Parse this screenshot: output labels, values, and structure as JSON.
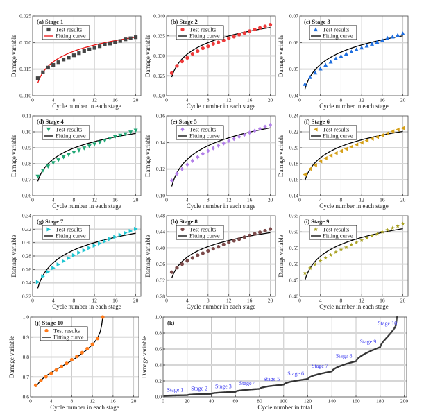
{
  "figure": {
    "ylabel": "Damage variable",
    "xlabel_stage": "Cycle number in each stage",
    "xlabel_total": "Cycle number in total",
    "legend_test": "Test results",
    "legend_fit": "Fitting curve"
  },
  "chart_data": [
    {
      "type": "scatter",
      "title": "(a) Stage 1",
      "xlim": [
        0,
        21
      ],
      "ylim": [
        0.01,
        0.025
      ],
      "xticks": [
        0,
        4,
        8,
        12,
        16,
        20
      ],
      "yticks": [
        "0.010",
        "0.015",
        "0.020",
        "0.025"
      ],
      "marker": "square",
      "color": "#454545",
      "fit_color": "#e81010",
      "x": [
        1,
        2,
        3,
        4,
        5,
        6,
        7,
        8,
        9,
        10,
        11,
        12,
        13,
        14,
        15,
        16,
        17,
        18,
        19,
        20
      ],
      "y": [
        0.0133,
        0.0144,
        0.0153,
        0.0158,
        0.0163,
        0.0168,
        0.0172,
        0.0176,
        0.018,
        0.0184,
        0.0187,
        0.019,
        0.0193,
        0.0196,
        0.0198,
        0.02,
        0.0203,
        0.0206,
        0.0208,
        0.021
      ],
      "fit": {
        "model": "a+b*ln(x)",
        "a": 0.0124,
        "b": 0.00287,
        "x_range": [
          1,
          20
        ]
      }
    },
    {
      "type": "scatter",
      "title": "(b) Stage 2",
      "xlim": [
        0,
        21
      ],
      "ylim": [
        0.02,
        0.04
      ],
      "xticks": [
        0,
        4,
        8,
        12,
        16,
        20
      ],
      "yticks": [
        "0.020",
        "0.025",
        "0.030",
        "0.035",
        "0.040"
      ],
      "marker": "circle",
      "color": "#ee3a3a",
      "fit_color": "#000000",
      "x": [
        1,
        2,
        3,
        4,
        5,
        6,
        7,
        8,
        9,
        10,
        11,
        12,
        13,
        14,
        15,
        16,
        17,
        18,
        19,
        20
      ],
      "y": [
        0.0257,
        0.0275,
        0.0286,
        0.0295,
        0.0305,
        0.0312,
        0.0319,
        0.0324,
        0.033,
        0.0334,
        0.0339,
        0.0344,
        0.0348,
        0.0353,
        0.0357,
        0.0362,
        0.0366,
        0.037,
        0.0374,
        0.0378
      ],
      "fit": {
        "model": "a+b*ln(x)",
        "a": 0.0247,
        "b": 0.00414,
        "x_range": [
          1,
          20
        ]
      }
    },
    {
      "type": "scatter",
      "title": "(c) Stage 3",
      "xlim": [
        0,
        21
      ],
      "ylim": [
        0.04,
        0.07
      ],
      "xticks": [
        0,
        4,
        8,
        12,
        16,
        20
      ],
      "yticks": [
        "0.04",
        "0.05",
        "0.06",
        "0.07"
      ],
      "marker": "triangle-up",
      "color": "#1f6fe0",
      "fit_color": "#000000",
      "x": [
        1,
        2,
        3,
        4,
        5,
        6,
        7,
        8,
        9,
        10,
        11,
        12,
        13,
        14,
        15,
        16,
        17,
        18,
        19,
        20
      ],
      "y": [
        0.0444,
        0.047,
        0.0487,
        0.0502,
        0.0516,
        0.0528,
        0.054,
        0.0549,
        0.0558,
        0.0566,
        0.0574,
        0.0581,
        0.0588,
        0.0595,
        0.0602,
        0.0609,
        0.0617,
        0.0622,
        0.0628,
        0.0634
      ],
      "fit": {
        "model": "a+b*ln(x)",
        "a": 0.0425,
        "b": 0.00668,
        "x_range": [
          1,
          20
        ]
      }
    },
    {
      "type": "scatter",
      "title": "(d) Stage 4",
      "xlim": [
        0,
        21
      ],
      "ylim": [
        0.06,
        0.11
      ],
      "xticks": [
        0,
        4,
        8,
        12,
        16,
        20
      ],
      "yticks": [
        "0.06",
        "0.07",
        "0.08",
        "0.09",
        "0.10",
        "0.11"
      ],
      "marker": "triangle-down",
      "color": "#22a876",
      "fit_color": "#000000",
      "x": [
        1,
        2,
        3,
        4,
        5,
        6,
        7,
        8,
        9,
        10,
        11,
        12,
        13,
        14,
        15,
        16,
        17,
        18,
        19,
        20
      ],
      "y": [
        0.072,
        0.0757,
        0.0783,
        0.0805,
        0.0823,
        0.0842,
        0.0856,
        0.087,
        0.0883,
        0.0897,
        0.091,
        0.0922,
        0.0933,
        0.0945,
        0.0957,
        0.0968,
        0.0977,
        0.0986,
        0.0997,
        0.1008
      ],
      "fit": {
        "model": "a+b*ln(x)",
        "a": 0.069,
        "b": 0.01001,
        "x_range": [
          1,
          20
        ]
      }
    },
    {
      "type": "scatter",
      "title": "(e) Stage 5",
      "xlim": [
        0,
        21
      ],
      "ylim": [
        0.1,
        0.16
      ],
      "xticks": [
        0,
        4,
        8,
        12,
        16,
        20
      ],
      "yticks": [
        "0.10",
        "0.12",
        "0.14",
        "0.16"
      ],
      "marker": "diamond",
      "color": "#b27fe8",
      "fit_color": "#000000",
      "x": [
        1,
        2,
        3,
        4,
        5,
        6,
        7,
        8,
        9,
        10,
        11,
        12,
        13,
        14,
        15,
        16,
        17,
        18,
        19,
        20
      ],
      "y": [
        0.1114,
        0.1165,
        0.12,
        0.1234,
        0.1262,
        0.129,
        0.1315,
        0.1337,
        0.1357,
        0.1376,
        0.1393,
        0.1412,
        0.1427,
        0.1443,
        0.1458,
        0.1474,
        0.1488,
        0.1503,
        0.1518,
        0.1532
      ],
      "fit": {
        "model": "a+b*ln(x)",
        "a": 0.107,
        "b": 0.01469,
        "x_range": [
          1,
          20
        ]
      }
    },
    {
      "type": "scatter",
      "title": "(f) Stage 6",
      "xlim": [
        0,
        21
      ],
      "ylim": [
        0.14,
        0.24
      ],
      "xticks": [
        0,
        4,
        8,
        12,
        16,
        20
      ],
      "yticks": [
        "0.14",
        "0.16",
        "0.18",
        "0.20",
        "0.22",
        "0.24"
      ],
      "marker": "triangle-left",
      "color": "#d6a11a",
      "fit_color": "#000000",
      "x": [
        1,
        2,
        3,
        4,
        5,
        6,
        7,
        8,
        9,
        10,
        11,
        12,
        13,
        14,
        15,
        16,
        17,
        18,
        19,
        20
      ],
      "y": [
        0.1665,
        0.1735,
        0.1783,
        0.183,
        0.187,
        0.1903,
        0.1933,
        0.196,
        0.1987,
        0.2013,
        0.204,
        0.2065,
        0.209,
        0.2113,
        0.2135,
        0.2158,
        0.2183,
        0.2205,
        0.2228,
        0.2247
      ],
      "fit": {
        "model": "a+b*ln(x)",
        "a": 0.159,
        "b": 0.02053,
        "x_range": [
          1,
          20
        ]
      }
    },
    {
      "type": "scatter",
      "title": "(g) Stage 7",
      "xlim": [
        0,
        21
      ],
      "ylim": [
        0.22,
        0.34
      ],
      "xticks": [
        0,
        4,
        8,
        12,
        16,
        20
      ],
      "yticks": [
        "0.22",
        "0.24",
        "0.26",
        "0.28",
        "0.30",
        "0.32",
        "0.34"
      ],
      "marker": "triangle-right",
      "color": "#1fc6d2",
      "fit_color": "#000000",
      "x": [
        1,
        2,
        3,
        4,
        5,
        6,
        7,
        8,
        9,
        10,
        11,
        12,
        13,
        14,
        15,
        16,
        17,
        18,
        19,
        20
      ],
      "y": [
        0.2412,
        0.2497,
        0.2565,
        0.2622,
        0.2675,
        0.2722,
        0.2768,
        0.2812,
        0.285,
        0.2885,
        0.292,
        0.2955,
        0.2988,
        0.302,
        0.3055,
        0.3085,
        0.3115,
        0.3145,
        0.3172,
        0.3205
      ],
      "fit": {
        "model": "a+b*ln(x)",
        "a": 0.232,
        "b": 0.02737,
        "x_range": [
          1,
          20
        ]
      }
    },
    {
      "type": "scatter",
      "title": "(h) Stage 8",
      "xlim": [
        0,
        21
      ],
      "ylim": [
        0.28,
        0.48
      ],
      "xticks": [
        0,
        4,
        8,
        12,
        16,
        20
      ],
      "yticks": [
        "0.28",
        "0.32",
        "0.36",
        "0.40",
        "0.44",
        "0.48"
      ],
      "marker": "hexagon",
      "color": "#7b4a4a",
      "fit_color": "#000000",
      "x": [
        1,
        2,
        3,
        4,
        5,
        6,
        7,
        8,
        9,
        10,
        11,
        12,
        13,
        14,
        15,
        16,
        17,
        18,
        19,
        20
      ],
      "y": [
        0.34,
        0.351,
        0.36,
        0.368,
        0.375,
        0.382,
        0.387,
        0.393,
        0.398,
        0.403,
        0.409,
        0.414,
        0.418,
        0.422,
        0.427,
        0.431,
        0.435,
        0.439,
        0.443,
        0.447
      ],
      "fit": {
        "model": "a+b*ln(x)",
        "a": 0.325,
        "b": 0.03772,
        "x_range": [
          1,
          20
        ]
      }
    },
    {
      "type": "scatter",
      "title": "(i) Stage 9",
      "xlim": [
        0,
        21
      ],
      "ylim": [
        0.4,
        0.65
      ],
      "xticks": [
        0,
        4,
        8,
        12,
        16,
        20
      ],
      "yticks": [
        "0.40",
        "0.45",
        "0.50",
        "0.55",
        "0.60",
        "0.65"
      ],
      "marker": "star",
      "color": "#a8a020",
      "fit_color": "#000000",
      "x": [
        1,
        2,
        3,
        4,
        5,
        6,
        7,
        8,
        9,
        10,
        11,
        12,
        13,
        14,
        15,
        16,
        17,
        18,
        19,
        20
      ],
      "y": [
        0.472,
        0.487,
        0.499,
        0.51,
        0.519,
        0.528,
        0.537,
        0.545,
        0.552,
        0.56,
        0.567,
        0.574,
        0.581,
        0.587,
        0.593,
        0.6,
        0.606,
        0.612,
        0.618,
        0.625
      ],
      "fit": {
        "model": "a+b*ln(x)",
        "a": 0.45,
        "b": 0.05341,
        "x_range": [
          1,
          20
        ]
      }
    },
    {
      "type": "scatter",
      "title": "(j) Stage 10",
      "xlim": [
        0,
        21
      ],
      "ylim": [
        0.6,
        1.0
      ],
      "xticks": [
        0,
        4,
        8,
        12,
        16,
        20
      ],
      "yticks": [
        "0.6",
        "0.7",
        "0.8",
        "0.9",
        "1.0"
      ],
      "marker": "circle",
      "color": "#ff7a1a",
      "fit_color": "#000000",
      "x": [
        1,
        2,
        3,
        4,
        5,
        6,
        7,
        8,
        9,
        10,
        11,
        12,
        13,
        14
      ],
      "y": [
        0.658,
        0.682,
        0.701,
        0.718,
        0.735,
        0.752,
        0.768,
        0.786,
        0.803,
        0.822,
        0.842,
        0.864,
        0.893,
        1.0
      ],
      "fit": {
        "model": "points",
        "x": [
          1,
          2,
          3,
          4,
          5,
          6,
          7,
          8,
          9,
          10,
          11,
          12,
          13,
          13.5,
          13.8,
          14
        ],
        "y": [
          0.65,
          0.684,
          0.705,
          0.722,
          0.737,
          0.752,
          0.767,
          0.782,
          0.799,
          0.818,
          0.838,
          0.862,
          0.895,
          0.925,
          0.96,
          1.0
        ]
      }
    },
    {
      "type": "line",
      "title": "(k)",
      "xlim": [
        0,
        202
      ],
      "ylim": [
        0,
        1.0
      ],
      "xticks": [
        0,
        20,
        40,
        60,
        80,
        100,
        120,
        140,
        160,
        180,
        200
      ],
      "yticks": [
        "0.0",
        "0.2",
        "0.4",
        "0.6",
        "0.8",
        "1.0"
      ],
      "color": "#555555",
      "series_source": "stages (a)-(j) concatenated, 20 cycles per stage",
      "stage_labels": [
        "Stage 1",
        "Stage 2",
        "Stage 3",
        "Stage 4",
        "Stage 5",
        "Stage 6",
        "Stage 7",
        "Stage 8",
        "Stage 9",
        "Stage 10"
      ],
      "stage_label_color": "#3a3af0"
    }
  ]
}
